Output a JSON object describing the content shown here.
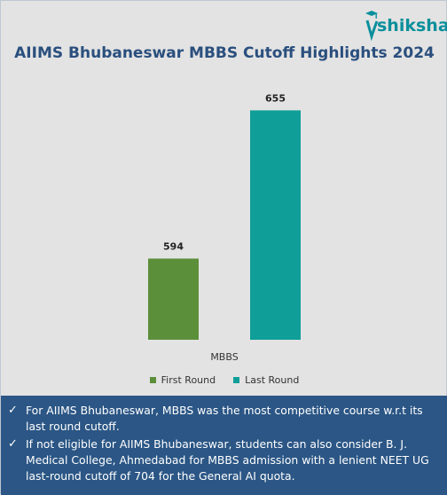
{
  "brand": {
    "name": "shiksha",
    "accent": "#0a8f9c",
    "icon": "graduation-cap-icon"
  },
  "chart_data": {
    "type": "bar",
    "title": "AIIMS Bhubaneswar MBBS Cutoff Highlights 2024",
    "categories": [
      "MBBS"
    ],
    "series": [
      {
        "name": "First Round",
        "values": [
          594
        ],
        "color": "#5b8f3a"
      },
      {
        "name": "Last Round",
        "values": [
          655
        ],
        "color": "#0f9e98"
      }
    ],
    "xlabel": "",
    "ylabel": "",
    "ylim": [
      0,
      700
    ],
    "grid": false,
    "legend_position": "bottom"
  },
  "notes": [
    "For AIIMS Bhubaneswar, MBBS was the most competitive course w.r.t its last round cutoff.",
    "If not eligible for AIIMS Bhubaneswar, students can also consider B. J. Medical College, Ahmedabad for MBBS admission with a lenient NEET UG last-round cutoff of 704 for the General AI quota."
  ],
  "colors": {
    "title": "#2a4f7e",
    "panel": "#2b5685",
    "background": "#e3e3e3"
  }
}
